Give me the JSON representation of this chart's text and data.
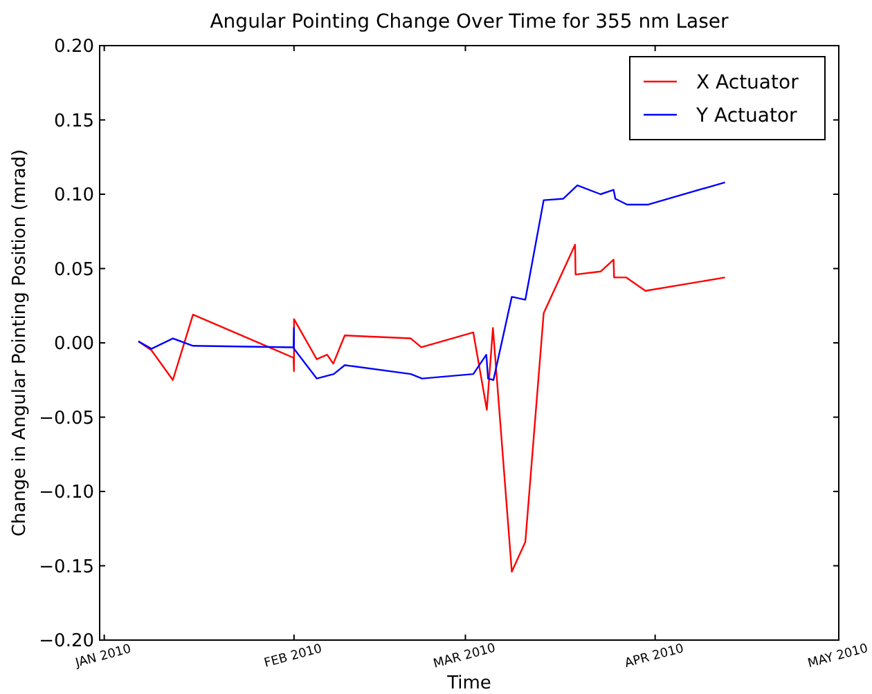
{
  "chart_data": {
    "type": "line",
    "title": "Angular Pointing Change Over Time for 355 nm Laser",
    "xlabel": "Time",
    "ylabel": "Change in Angular Pointing Position (mrad)",
    "xlim": [
      "2009-12-31T06:00",
      "2010-05-01"
    ],
    "xticks": [
      {
        "value": "2010-01-01",
        "label": "JAN 2010"
      },
      {
        "value": "2010-02-01",
        "label": "FEB 2010"
      },
      {
        "value": "2010-03-01",
        "label": "MAR 2010"
      },
      {
        "value": "2010-04-01",
        "label": "APR 2010"
      },
      {
        "value": "2010-05-01",
        "label": "MAY 2010"
      }
    ],
    "ylim": [
      -0.2,
      0.2
    ],
    "yticks": [
      {
        "value": -0.2,
        "label": "−0.20"
      },
      {
        "value": -0.15,
        "label": "−0.15"
      },
      {
        "value": -0.1,
        "label": "−0.10"
      },
      {
        "value": -0.05,
        "label": "−0.05"
      },
      {
        "value": 0,
        "label": "0.00"
      },
      {
        "value": 0.05,
        "label": "0.05"
      },
      {
        "value": 0.1,
        "label": "0.10"
      },
      {
        "value": 0.15,
        "label": "0.15"
      },
      {
        "value": 0.2,
        "label": "0.20"
      }
    ],
    "grid": false,
    "legend": "top right",
    "series": [
      {
        "name": "X Actuator",
        "color": "#ff0000",
        "x": [
          "2010-01-06T14:00",
          "2010-01-08T17:00",
          "2010-01-12T05:00",
          "2010-01-15T12:00",
          "2010-01-31T22:00",
          "2010-02-01T00:00",
          "2010-02-01T00:00",
          "2010-02-04T17:00",
          "2010-02-06T10:00",
          "2010-02-07T10:00",
          "2010-02-09T07:00",
          "2010-02-20T02:00",
          "2010-02-21T19:00",
          "2010-03-02T07:00",
          "2010-03-04T12:00",
          "2010-03-05T12:00",
          "2010-03-08T14:00",
          "2010-03-10T19:00",
          "2010-03-13T19:00",
          "2010-03-18T22:00",
          "2010-03-19T00:00",
          "2010-03-23T02:00",
          "2010-03-25T05:00",
          "2010-03-25T07:00",
          "2010-03-27T07:00",
          "2010-03-30T10:00",
          "2010-04-12T10:00"
        ],
        "values": [
          0.001,
          -0.005,
          -0.025,
          0.019,
          -0.01,
          -0.019,
          0.016,
          -0.011,
          -0.008,
          -0.014,
          0.005,
          0.003,
          -0.003,
          0.007,
          -0.045,
          0.01,
          -0.154,
          -0.134,
          0.02,
          0.066,
          0.046,
          0.048,
          0.056,
          0.044,
          0.044,
          0.035,
          0.044
        ]
      },
      {
        "name": "Y Actuator",
        "color": "#0000ff",
        "x": [
          "2010-01-06T14:00",
          "2010-01-08T17:00",
          "2010-01-12T05:00",
          "2010-01-15T12:00",
          "2010-01-31T22:00",
          "2010-02-01T00:00",
          "2010-02-01T00:00",
          "2010-02-04T17:00",
          "2010-02-07T12:00",
          "2010-02-09T07:00",
          "2010-02-20T02:00",
          "2010-02-21T22:00",
          "2010-03-02T07:00",
          "2010-03-04T10:00",
          "2010-03-04T17:00",
          "2010-03-05T14:00",
          "2010-03-08T14:00",
          "2010-03-10T19:00",
          "2010-03-13T19:00",
          "2010-03-17T00:00",
          "2010-03-19T07:00",
          "2010-03-23T02:00",
          "2010-03-25T05:00",
          "2010-03-25T12:00",
          "2010-03-27T10:00",
          "2010-03-30T19:00",
          "2010-04-12T10:00"
        ],
        "values": [
          0.001,
          -0.004,
          0.003,
          -0.002,
          -0.003,
          0.01,
          -0.004,
          -0.024,
          -0.021,
          -0.015,
          -0.021,
          -0.024,
          -0.021,
          -0.008,
          -0.024,
          -0.025,
          0.031,
          0.029,
          0.096,
          0.097,
          0.106,
          0.1,
          0.103,
          0.097,
          0.093,
          0.093,
          0.108
        ]
      }
    ]
  }
}
